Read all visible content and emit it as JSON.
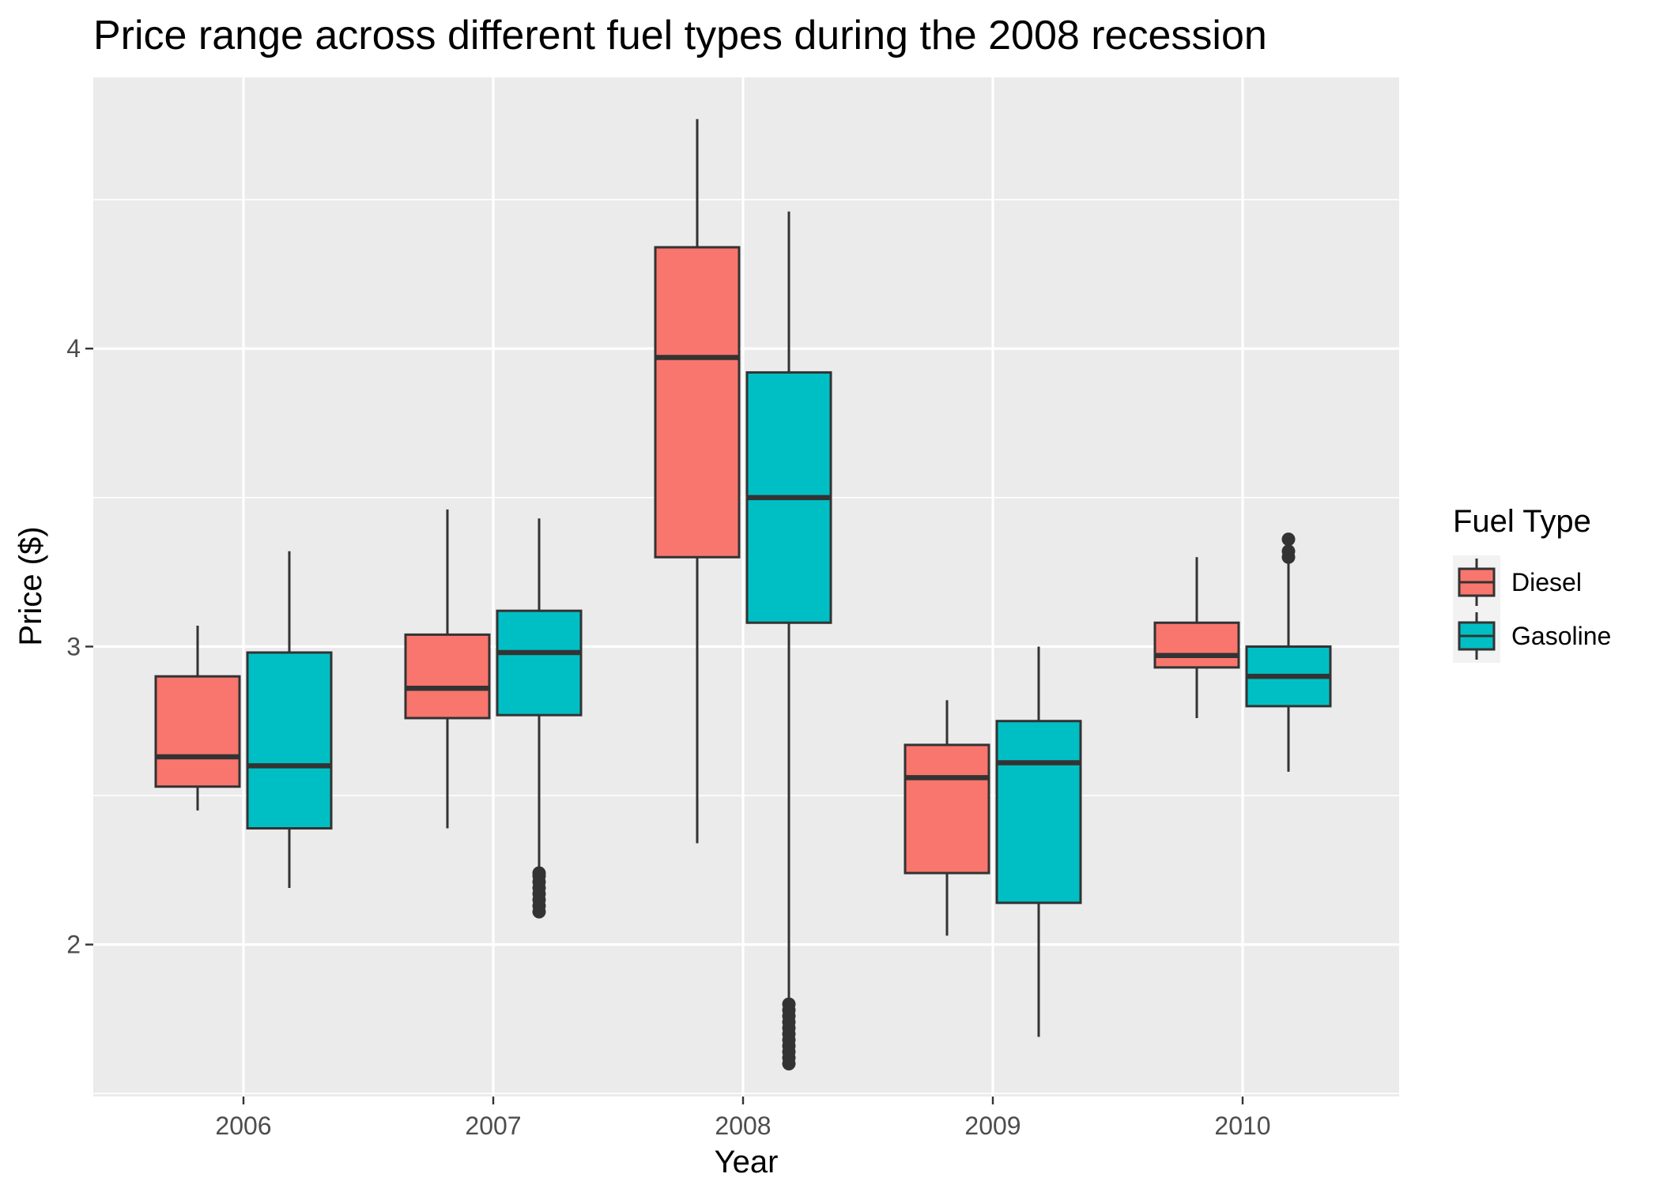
{
  "chart_data": {
    "type": "boxplot",
    "title": "Price range across different fuel types during the 2008 recession",
    "xlabel": "Year",
    "ylabel": "Price ($)",
    "categories": [
      "2006",
      "2007",
      "2008",
      "2009",
      "2010"
    ],
    "yticks": [
      2,
      3,
      4
    ],
    "ylim": [
      1.49,
      4.91
    ],
    "grid": true,
    "legend": {
      "title": "Fuel Type",
      "position": "right",
      "entries": [
        "Diesel",
        "Gasoline"
      ]
    },
    "series": [
      {
        "name": "Diesel",
        "color": "#F8766D",
        "boxes": [
          {
            "category": "2006",
            "whisker_low": 2.45,
            "q1": 2.53,
            "median": 2.63,
            "q3": 2.9,
            "whisker_high": 3.07,
            "outliers": []
          },
          {
            "category": "2007",
            "whisker_low": 2.39,
            "q1": 2.76,
            "median": 2.86,
            "q3": 3.04,
            "whisker_high": 3.46,
            "outliers": []
          },
          {
            "category": "2008",
            "whisker_low": 2.34,
            "q1": 3.3,
            "median": 3.97,
            "q3": 4.34,
            "whisker_high": 4.77,
            "outliers": []
          },
          {
            "category": "2009",
            "whisker_low": 2.03,
            "q1": 2.24,
            "median": 2.56,
            "q3": 2.67,
            "whisker_high": 2.82,
            "outliers": []
          },
          {
            "category": "2010",
            "whisker_low": 2.76,
            "q1": 2.93,
            "median": 2.97,
            "q3": 3.08,
            "whisker_high": 3.3,
            "outliers": []
          }
        ]
      },
      {
        "name": "Gasoline",
        "color": "#00BFC4",
        "boxes": [
          {
            "category": "2006",
            "whisker_low": 2.19,
            "q1": 2.39,
            "median": 2.6,
            "q3": 2.98,
            "whisker_high": 3.32,
            "outliers": []
          },
          {
            "category": "2007",
            "whisker_low": 2.25,
            "q1": 2.77,
            "median": 2.98,
            "q3": 3.12,
            "whisker_high": 3.43,
            "outliers": [
              2.11,
              2.13,
              2.15,
              2.17,
              2.19,
              2.21,
              2.23,
              2.24
            ]
          },
          {
            "category": "2008",
            "whisker_low": 1.82,
            "q1": 3.08,
            "median": 3.5,
            "q3": 3.92,
            "whisker_high": 4.46,
            "outliers": [
              1.6,
              1.62,
              1.64,
              1.66,
              1.68,
              1.7,
              1.72,
              1.74,
              1.76,
              1.78,
              1.8
            ]
          },
          {
            "category": "2009",
            "whisker_low": 1.69,
            "q1": 2.14,
            "median": 2.61,
            "q3": 2.75,
            "whisker_high": 3.0,
            "outliers": []
          },
          {
            "category": "2010",
            "whisker_low": 2.58,
            "q1": 2.8,
            "median": 2.9,
            "q3": 3.0,
            "whisker_high": 3.29,
            "outliers": [
              3.3,
              3.32,
              3.36
            ]
          }
        ]
      }
    ]
  }
}
